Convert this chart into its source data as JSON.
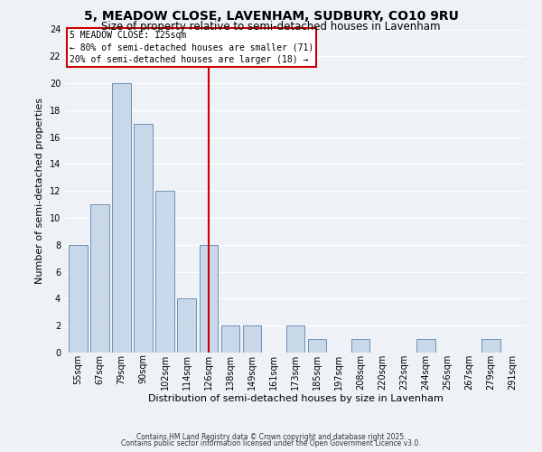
{
  "title_line1": "5, MEADOW CLOSE, LAVENHAM, SUDBURY, CO10 9RU",
  "title_line2": "Size of property relative to semi-detached houses in Lavenham",
  "xlabel": "Distribution of semi-detached houses by size in Lavenham",
  "ylabel": "Number of semi-detached properties",
  "categories": [
    "55sqm",
    "67sqm",
    "79sqm",
    "90sqm",
    "102sqm",
    "114sqm",
    "126sqm",
    "138sqm",
    "149sqm",
    "161sqm",
    "173sqm",
    "185sqm",
    "197sqm",
    "208sqm",
    "220sqm",
    "232sqm",
    "244sqm",
    "256sqm",
    "267sqm",
    "279sqm",
    "291sqm"
  ],
  "values": [
    8,
    11,
    20,
    17,
    12,
    4,
    8,
    2,
    2,
    0,
    2,
    1,
    0,
    1,
    0,
    0,
    1,
    0,
    0,
    1,
    0
  ],
  "bar_color": "#c8d8e8",
  "bar_edge_color": "#7090b8",
  "highlight_index": 6,
  "highlight_color": "#cc0000",
  "annotation_title": "5 MEADOW CLOSE: 125sqm",
  "annotation_line1": "← 80% of semi-detached houses are smaller (71)",
  "annotation_line2": "20% of semi-detached houses are larger (18) →",
  "annotation_box_color": "#ffffff",
  "annotation_box_edge": "#cc0000",
  "ylim": [
    0,
    24
  ],
  "yticks": [
    0,
    2,
    4,
    6,
    8,
    10,
    12,
    14,
    16,
    18,
    20,
    22,
    24
  ],
  "footer1": "Contains HM Land Registry data © Crown copyright and database right 2025.",
  "footer2": "Contains public sector information licensed under the Open Government Licence v3.0.",
  "bg_color": "#eef2f6",
  "grid_color": "#ffffff",
  "title_fontsize": 10,
  "subtitle_fontsize": 8.5,
  "label_fontsize": 8,
  "tick_fontsize": 7,
  "footer_fontsize": 5.5
}
